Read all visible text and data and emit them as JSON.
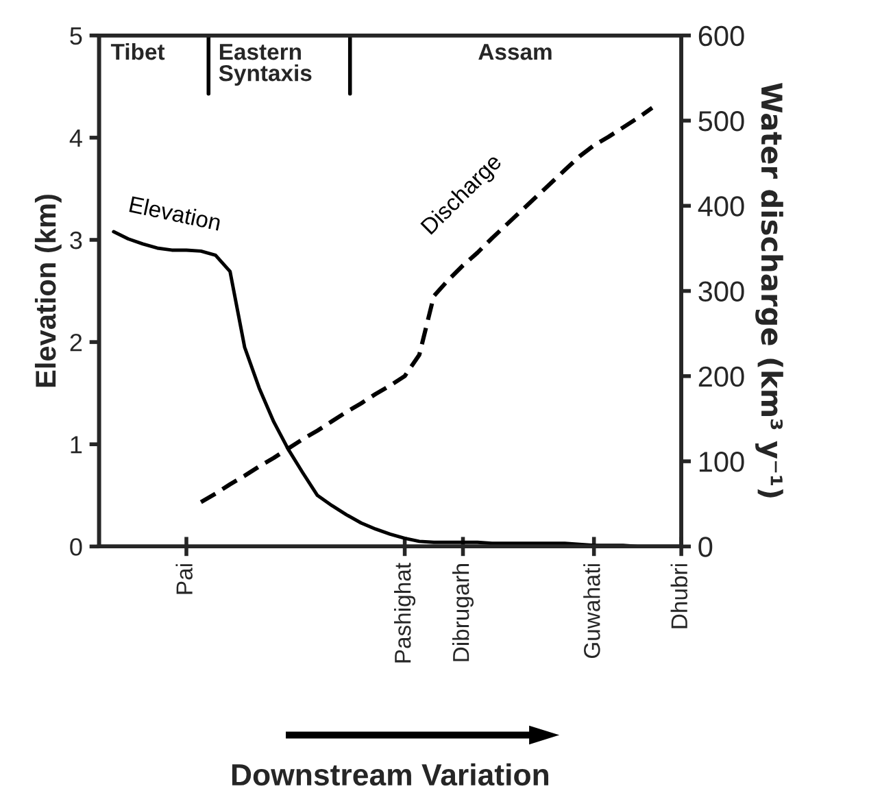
{
  "chart_data": {
    "type": "line",
    "xlabel": "Downstream Variation",
    "ylabel": "Elevation (km)",
    "y2label": "Water discharge (km³ y⁻¹)",
    "categories": [
      null,
      null,
      null,
      null,
      null,
      null,
      "Pai",
      null,
      null,
      null,
      null,
      null,
      null,
      null,
      null,
      null,
      null,
      null,
      null,
      null,
      null,
      "Pashighat",
      null,
      null,
      null,
      "Dibrugarh",
      null,
      null,
      null,
      null,
      null,
      null,
      null,
      null,
      "Guwahati",
      null,
      null,
      null,
      null,
      null,
      "Dhubri"
    ],
    "ylim": [
      0,
      5
    ],
    "yticks": [
      0,
      1,
      2,
      3,
      4,
      5
    ],
    "y2lim": [
      0,
      600
    ],
    "y2ticks": [
      0,
      100,
      200,
      300,
      400,
      500,
      600
    ],
    "grid": false,
    "series": [
      {
        "name": "Elevation",
        "color": "#000000",
        "line_style": "solid",
        "values": [
          null,
          3.08,
          3.01,
          2.96,
          2.92,
          2.9,
          2.9,
          2.89,
          2.85,
          2.69,
          1.95,
          1.55,
          1.22,
          0.95,
          0.72,
          0.5,
          0.4,
          0.31,
          0.23,
          0.17,
          0.12,
          0.08,
          0.05,
          0.04,
          0.04,
          0.04,
          0.04,
          0.03,
          0.03,
          0.03,
          0.03,
          0.03,
          0.03,
          0.02,
          0.01,
          0.01,
          0.01,
          0,
          0,
          0,
          0
        ]
      },
      {
        "name": "Discharge",
        "color": "#000000",
        "line_style": "dashed",
        "axis": "y2",
        "values": [
          null,
          null,
          null,
          null,
          null,
          null,
          null,
          52,
          62,
          73,
          83,
          94,
          104,
          115,
          126,
          136,
          147,
          158,
          168,
          179,
          189,
          200,
          225,
          294,
          313,
          330,
          345,
          362,
          378,
          394,
          410,
          426,
          442,
          458,
          471,
          481,
          492,
          503,
          515,
          null,
          null
        ]
      }
    ],
    "annotations": [
      "Tibet",
      "Eastern\nSyntaxis",
      "Assam"
    ]
  }
}
